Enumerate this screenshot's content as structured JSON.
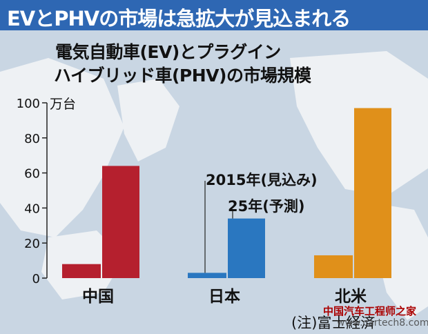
{
  "banner": {
    "title": "EVとPHVの市場は急拡大が見込まれる"
  },
  "header": {
    "title_line1": "電気自動車(EV)とプラグイン",
    "title_line2": "ハイブリッド車(PHV)の市場規模"
  },
  "colors": {
    "banner": "#2e67b3",
    "china": "#b5202e",
    "japan": "#2a77c0",
    "north_america": "#e0901a"
  },
  "chart_data": {
    "type": "bar",
    "unit": "万台",
    "ylim": [
      0,
      100
    ],
    "yticks": [
      0,
      20,
      40,
      60,
      80,
      100
    ],
    "legend_line1": "2015年(見込み)",
    "legend_line2": "25年(予測)",
    "categories": [
      "中国",
      "日本",
      "北米"
    ],
    "series": [
      {
        "name": "2015年(見込み)",
        "values": [
          8,
          3,
          13
        ]
      },
      {
        "name": "25年(予測)",
        "values": [
          64,
          34,
          97
        ]
      }
    ]
  },
  "footer": {
    "note": "(注)富士経済"
  },
  "watermark": {
    "line1": "中国汽车工程师之家",
    "line2": "www.cartech8.com"
  }
}
